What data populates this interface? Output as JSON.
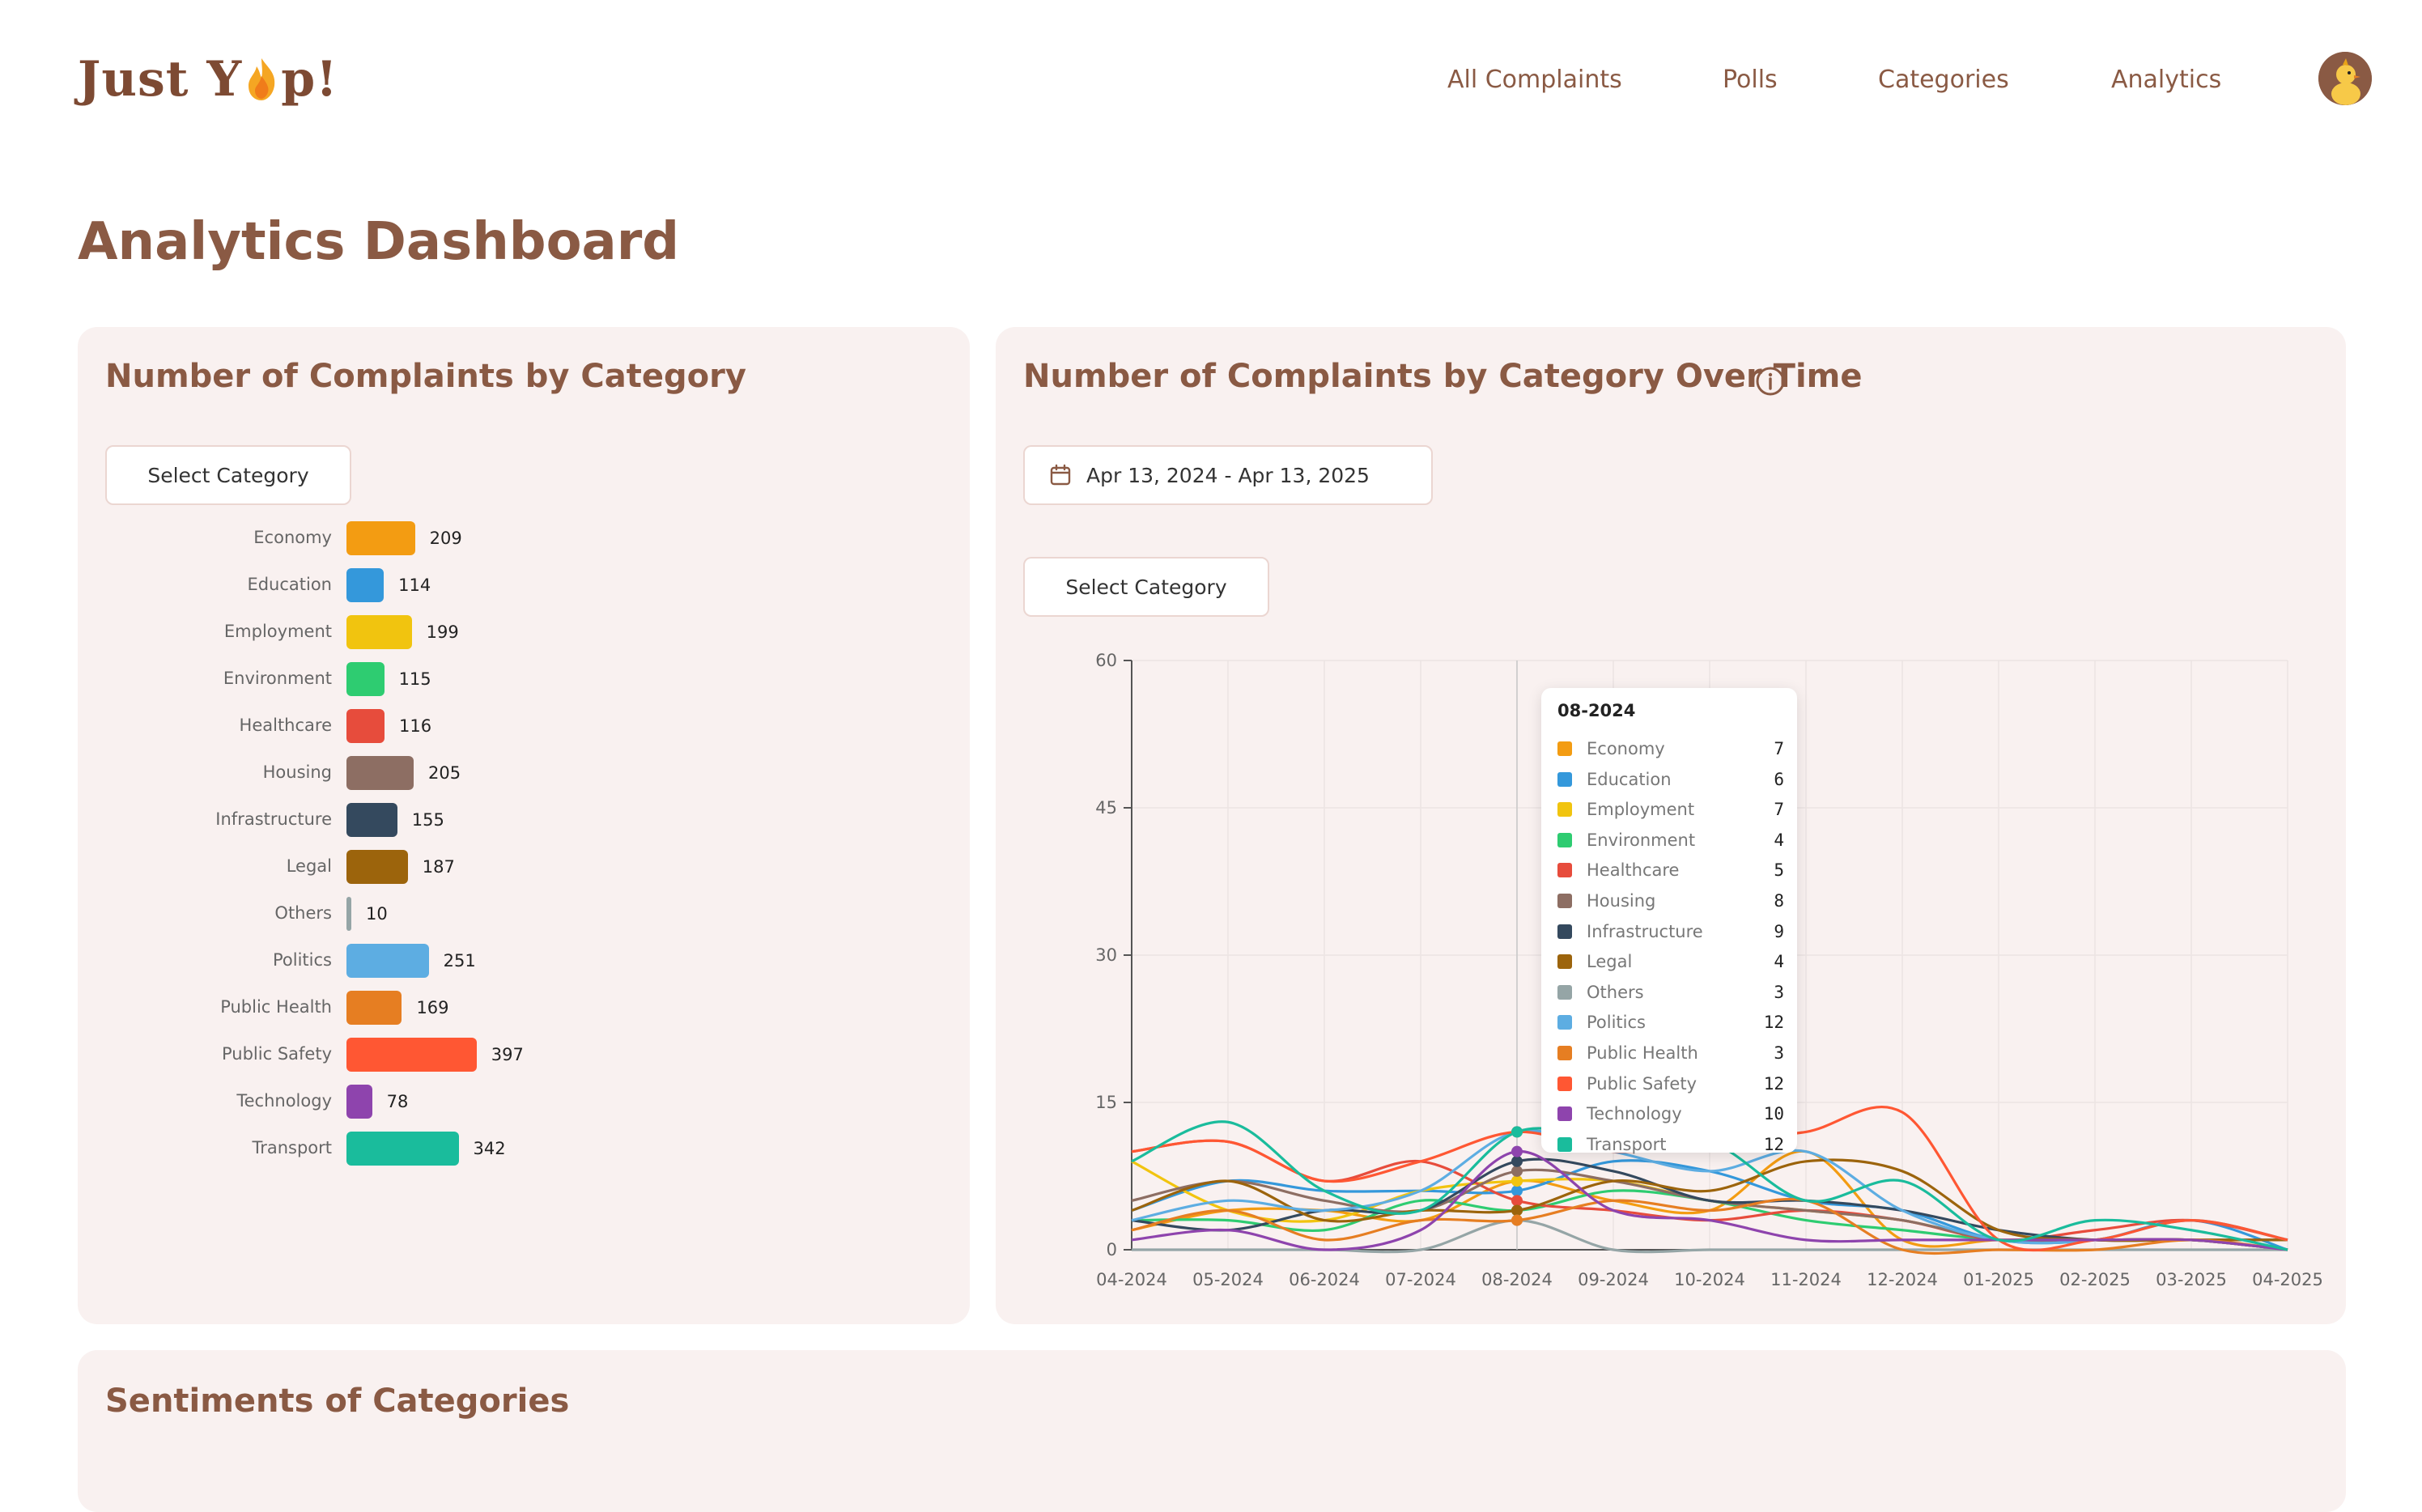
{
  "header": {
    "logo_text_1": "Just Y",
    "logo_text_2": "p!",
    "nav": [
      "All Complaints",
      "Polls",
      "Categories",
      "Analytics"
    ]
  },
  "page_title": "Analytics Dashboard",
  "colors": {
    "brand": "#8a5a44",
    "card_bg": "#f9f1f0",
    "economy": "#f39c12",
    "education": "#3498db",
    "employment": "#f1c40f",
    "environment": "#2ecc71",
    "healthcare": "#e74c3c",
    "housing": "#8d6e63",
    "infrastructure": "#34495e",
    "legal": "#9c640c",
    "others": "#95a5a6",
    "politics": "#5dade2",
    "public_health": "#e67e22",
    "public_safety": "#ff5733",
    "technology": "#8e44ad",
    "transport": "#1abc9c"
  },
  "card_left": {
    "title": "Number of Complaints by Category",
    "select_label": "Select Category"
  },
  "card_right": {
    "title": "Number of Complaints by Category Over Time",
    "date_range": "Apr 13, 2024 - Apr 13, 2025",
    "select_label": "Select Category",
    "info_icon": "info-icon",
    "calendar_icon": "calendar-icon"
  },
  "tooltip": {
    "title": "08-2024",
    "rows": [
      {
        "name": "Economy",
        "value": "7",
        "color": "#f39c12"
      },
      {
        "name": "Education",
        "value": "6",
        "color": "#3498db"
      },
      {
        "name": "Employment",
        "value": "7",
        "color": "#f1c40f"
      },
      {
        "name": "Environment",
        "value": "4",
        "color": "#2ecc71"
      },
      {
        "name": "Healthcare",
        "value": "5",
        "color": "#e74c3c"
      },
      {
        "name": "Housing",
        "value": "8",
        "color": "#8d6e63"
      },
      {
        "name": "Infrastructure",
        "value": "9",
        "color": "#34495e"
      },
      {
        "name": "Legal",
        "value": "4",
        "color": "#9c640c"
      },
      {
        "name": "Others",
        "value": "3",
        "color": "#95a5a6"
      },
      {
        "name": "Politics",
        "value": "12",
        "color": "#5dade2"
      },
      {
        "name": "Public Health",
        "value": "3",
        "color": "#e67e22"
      },
      {
        "name": "Public Safety",
        "value": "12",
        "color": "#ff5733"
      },
      {
        "name": "Technology",
        "value": "10",
        "color": "#8e44ad"
      },
      {
        "name": "Transport",
        "value": "12",
        "color": "#1abc9c"
      }
    ]
  },
  "bottom_card": {
    "title": "Sentiments of Categories"
  },
  "chart_data": [
    {
      "type": "bar",
      "orientation": "horizontal",
      "title": "Number of Complaints by Category",
      "categories": [
        "Economy",
        "Education",
        "Employment",
        "Environment",
        "Healthcare",
        "Housing",
        "Infrastructure",
        "Legal",
        "Others",
        "Politics",
        "Public Health",
        "Public Safety",
        "Technology",
        "Transport"
      ],
      "values": [
        209,
        114,
        199,
        115,
        116,
        205,
        155,
        187,
        10,
        251,
        169,
        397,
        78,
        342
      ],
      "value_labels": [
        "209",
        "114",
        "199",
        "115",
        "116",
        "205",
        "155",
        "187",
        "10",
        "251",
        "169",
        "397",
        "78",
        "342"
      ],
      "colors": [
        "#f39c12",
        "#3498db",
        "#f1c40f",
        "#2ecc71",
        "#e74c3c",
        "#8d6e63",
        "#34495e",
        "#9c640c",
        "#95a5a6",
        "#5dade2",
        "#e67e22",
        "#ff5733",
        "#8e44ad",
        "#1abc9c"
      ],
      "xlim": [
        0,
        400
      ]
    },
    {
      "type": "line",
      "title": "Number of Complaints by Category Over Time",
      "x": [
        "04-2024",
        "05-2024",
        "06-2024",
        "07-2024",
        "08-2024",
        "09-2024",
        "10-2024",
        "11-2024",
        "12-2024",
        "01-2025",
        "02-2025",
        "03-2025",
        "04-2025"
      ],
      "ylim": [
        0,
        60
      ],
      "yticks": [
        "0",
        "15",
        "30",
        "45",
        "60"
      ],
      "grid": true,
      "series": [
        {
          "name": "Economy",
          "color": "#f39c12",
          "values": [
            2,
            4,
            4,
            3,
            7,
            5,
            4,
            10,
            1,
            1,
            1,
            1,
            0
          ]
        },
        {
          "name": "Education",
          "color": "#3498db",
          "values": [
            4,
            7,
            6,
            6,
            6,
            9,
            8,
            5,
            4,
            1,
            1,
            3,
            0
          ]
        },
        {
          "name": "Employment",
          "color": "#f1c40f",
          "values": [
            9,
            4,
            3,
            6,
            7,
            7,
            5,
            4,
            3,
            1,
            1,
            1,
            0
          ]
        },
        {
          "name": "Environment",
          "color": "#2ecc71",
          "values": [
            3,
            3,
            2,
            5,
            4,
            6,
            5,
            3,
            2,
            1,
            1,
            1,
            0
          ]
        },
        {
          "name": "Healthcare",
          "color": "#e74c3c",
          "values": [
            10,
            11,
            7,
            9,
            5,
            4,
            3,
            4,
            3,
            1,
            2,
            3,
            1
          ]
        },
        {
          "name": "Housing",
          "color": "#8d6e63",
          "values": [
            5,
            7,
            5,
            4,
            8,
            7,
            5,
            4,
            3,
            1,
            1,
            1,
            0
          ]
        },
        {
          "name": "Infrastructure",
          "color": "#34495e",
          "values": [
            3,
            2,
            4,
            4,
            9,
            8,
            5,
            5,
            4,
            2,
            1,
            1,
            1
          ]
        },
        {
          "name": "Legal",
          "color": "#9c640c",
          "values": [
            4,
            7,
            3,
            4,
            4,
            7,
            6,
            9,
            8,
            2,
            1,
            1,
            1
          ]
        },
        {
          "name": "Others",
          "color": "#95a5a6",
          "values": [
            0,
            0,
            0,
            0,
            3,
            0,
            0,
            0,
            0,
            0,
            0,
            0,
            0
          ]
        },
        {
          "name": "Politics",
          "color": "#5dade2",
          "values": [
            3,
            5,
            4,
            6,
            12,
            10,
            8,
            10,
            4,
            1,
            1,
            3,
            1
          ]
        },
        {
          "name": "Public Health",
          "color": "#e67e22",
          "values": [
            2,
            4,
            1,
            3,
            3,
            5,
            4,
            5,
            0,
            0,
            0,
            1,
            0
          ]
        },
        {
          "name": "Public Safety",
          "color": "#ff5733",
          "values": [
            10,
            11,
            7,
            9,
            12,
            10,
            11,
            12,
            14,
            1,
            1,
            3,
            1
          ]
        },
        {
          "name": "Technology",
          "color": "#8e44ad",
          "values": [
            1,
            2,
            0,
            2,
            10,
            4,
            3,
            1,
            1,
            1,
            1,
            1,
            0
          ]
        },
        {
          "name": "Transport",
          "color": "#1abc9c",
          "values": [
            9,
            13,
            6,
            4,
            12,
            11,
            11,
            5,
            7,
            1,
            3,
            2,
            0
          ]
        }
      ]
    }
  ]
}
